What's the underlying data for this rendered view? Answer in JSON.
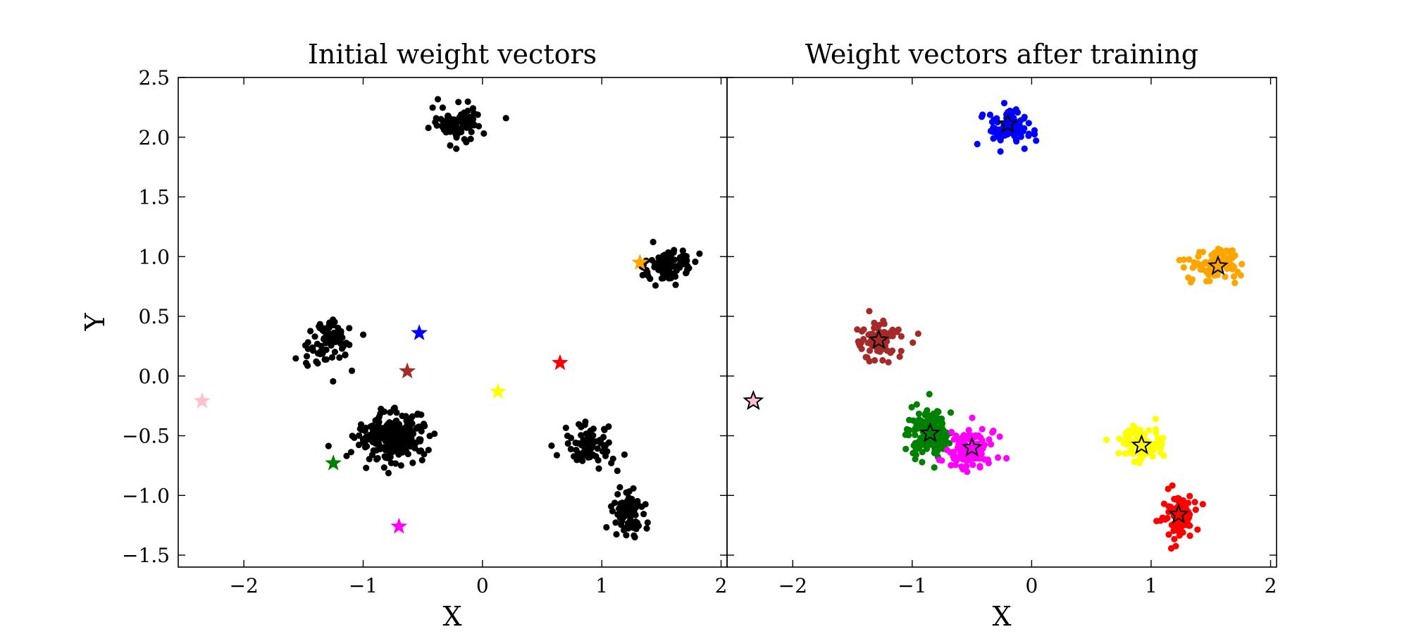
{
  "chart_data": [
    {
      "type": "scatter",
      "title": "Initial weight vectors",
      "xlabel": "X",
      "ylabel": "Y",
      "xlim": [
        -2.55,
        2.05
      ],
      "ylim": [
        -1.6,
        2.5
      ],
      "xticks": [
        "−2",
        "−1",
        "0",
        "1",
        "2"
      ],
      "xtick_values": [
        -2,
        -1,
        0,
        1,
        2
      ],
      "yticks": [
        "−1.5",
        "−1.0",
        "−0.5",
        "0.0",
        "0.5",
        "1.0",
        "1.5",
        "2.0",
        "2.5"
      ],
      "ytick_values": [
        -1.5,
        -1.0,
        -0.5,
        0.0,
        0.5,
        1.0,
        1.5,
        2.0,
        2.5
      ],
      "point_color": "#000000",
      "clusters": [
        {
          "center": [
            -0.2,
            2.1
          ],
          "spread": [
            0.1,
            0.08
          ],
          "count": 90
        },
        {
          "center": [
            1.55,
            0.93
          ],
          "spread": [
            0.11,
            0.07
          ],
          "count": 100
        },
        {
          "center": [
            -1.28,
            0.3
          ],
          "spread": [
            0.1,
            0.1
          ],
          "count": 80
        },
        {
          "center": [
            -0.75,
            -0.52
          ],
          "spread": [
            0.15,
            0.1
          ],
          "count": 260
        },
        {
          "center": [
            0.9,
            -0.58
          ],
          "spread": [
            0.1,
            0.08
          ],
          "count": 80
        },
        {
          "center": [
            1.22,
            -1.16
          ],
          "spread": [
            0.07,
            0.1
          ],
          "count": 80
        }
      ],
      "weight_vectors": [
        {
          "x": -0.53,
          "y": 0.36,
          "color": "#0000ff"
        },
        {
          "x": 1.32,
          "y": 0.95,
          "color": "#ffa500"
        },
        {
          "x": -0.63,
          "y": 0.04,
          "color": "#a52a2a"
        },
        {
          "x": 0.65,
          "y": 0.11,
          "color": "#ff0000"
        },
        {
          "x": 0.13,
          "y": -0.13,
          "color": "#ffff00"
        },
        {
          "x": -2.35,
          "y": -0.21,
          "color": "#ffc0cb"
        },
        {
          "x": -1.25,
          "y": -0.73,
          "color": "#008000"
        },
        {
          "x": -0.7,
          "y": -1.26,
          "color": "#ff00ff"
        }
      ]
    },
    {
      "type": "scatter",
      "title": "Weight vectors after training",
      "xlabel": "X",
      "ylabel": "",
      "xlim": [
        -2.55,
        2.05
      ],
      "ylim": [
        -1.6,
        2.5
      ],
      "xticks": [
        "−2",
        "−1",
        "0",
        "1",
        "2"
      ],
      "xtick_values": [
        -2,
        -1,
        0,
        1,
        2
      ],
      "clusters": [
        {
          "center": [
            -0.2,
            2.1
          ],
          "spread": [
            0.1,
            0.08
          ],
          "count": 90,
          "color": "#0000ff"
        },
        {
          "center": [
            1.55,
            0.93
          ],
          "spread": [
            0.11,
            0.07
          ],
          "count": 100,
          "color": "#ffa500"
        },
        {
          "center": [
            -1.28,
            0.3
          ],
          "spread": [
            0.1,
            0.1
          ],
          "count": 80,
          "color": "#a52a2a"
        },
        {
          "center": [
            -0.86,
            -0.47
          ],
          "spread": [
            0.09,
            0.1
          ],
          "count": 150,
          "color": "#008000"
        },
        {
          "center": [
            -0.5,
            -0.6
          ],
          "spread": [
            0.09,
            0.08
          ],
          "count": 110,
          "color": "#ff00ff"
        },
        {
          "center": [
            0.92,
            -0.58
          ],
          "spread": [
            0.1,
            0.08
          ],
          "count": 80,
          "color": "#ffff00"
        },
        {
          "center": [
            1.23,
            -1.16
          ],
          "spread": [
            0.07,
            0.1
          ],
          "count": 80,
          "color": "#ff0000"
        }
      ],
      "weight_vectors": [
        {
          "x": -0.2,
          "y": 2.11,
          "color": "#0000ff"
        },
        {
          "x": 1.56,
          "y": 0.92,
          "color": "#ffa500"
        },
        {
          "x": -1.28,
          "y": 0.3,
          "color": "#a52a2a"
        },
        {
          "x": -0.85,
          "y": -0.48,
          "color": "#008000"
        },
        {
          "x": -0.5,
          "y": -0.6,
          "color": "#ff00ff"
        },
        {
          "x": 0.92,
          "y": -0.58,
          "color": "#ffff00"
        },
        {
          "x": 1.23,
          "y": -1.16,
          "color": "#ff0000"
        },
        {
          "x": -2.33,
          "y": -0.21,
          "color": "#ffc0cb"
        }
      ]
    }
  ]
}
